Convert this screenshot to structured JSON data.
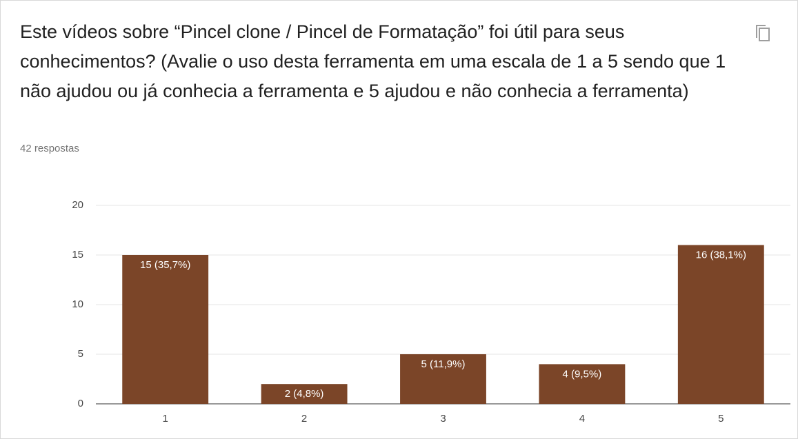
{
  "chart_data": {
    "type": "bar",
    "title": "Este vídeos sobre “Pincel clone / Pincel de Formatação” foi útil para seus conhecimentos? (Avalie o uso desta ferramenta em uma escala de 1 a 5 sendo que 1 não ajudou ou já conhecia a ferramenta e 5 ajudou e não conhecia a ferramenta)",
    "subtitle": "42 respostas",
    "categories": [
      "1",
      "2",
      "3",
      "4",
      "5"
    ],
    "values": [
      15,
      2,
      5,
      4,
      16
    ],
    "value_labels": [
      "15 (35,7%)",
      "2 (4,8%)",
      "5 (11,9%)",
      "4 (9,5%)",
      "16 (38,1%)"
    ],
    "color": "#7b4528",
    "ylim": [
      0,
      20
    ],
    "yticks": [
      0,
      5,
      10,
      15,
      20
    ],
    "grid": true
  }
}
